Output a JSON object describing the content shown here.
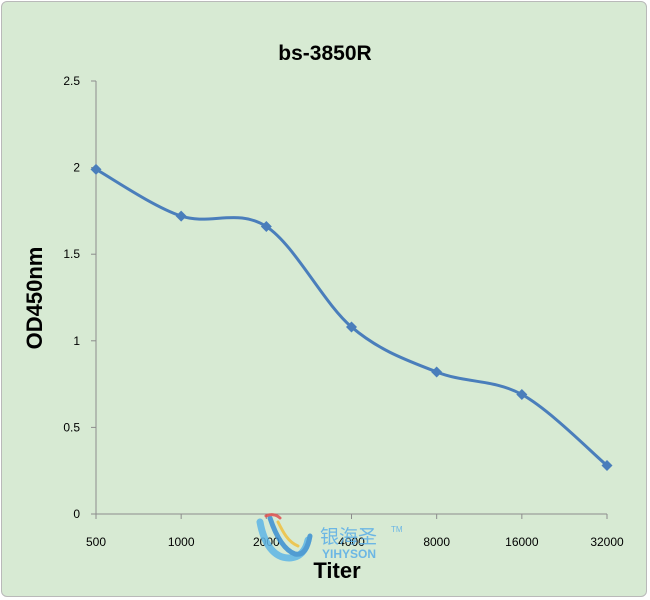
{
  "chart_data": {
    "type": "line",
    "title": "bs-3850R",
    "xlabel": "Titer",
    "ylabel": "OD450nm",
    "categories": [
      "500",
      "1000",
      "2000",
      "4000",
      "8000",
      "16000",
      "32000"
    ],
    "series": [
      {
        "values": [
          1.99,
          1.72,
          1.66,
          1.08,
          0.82,
          0.69,
          0.28
        ],
        "color": "#4a7ebb"
      }
    ],
    "y_ticks": [
      "0",
      "0.5",
      "1",
      "1.5",
      "2",
      "2.5"
    ],
    "ylim": [
      0,
      2.5
    ],
    "grid": false,
    "smooth": true,
    "marker": "diamond",
    "background_color": "#d7ead3"
  },
  "watermark": {
    "brand_cn": "银海圣",
    "brand_en": "YIHYSON",
    "trademark": "TM"
  }
}
